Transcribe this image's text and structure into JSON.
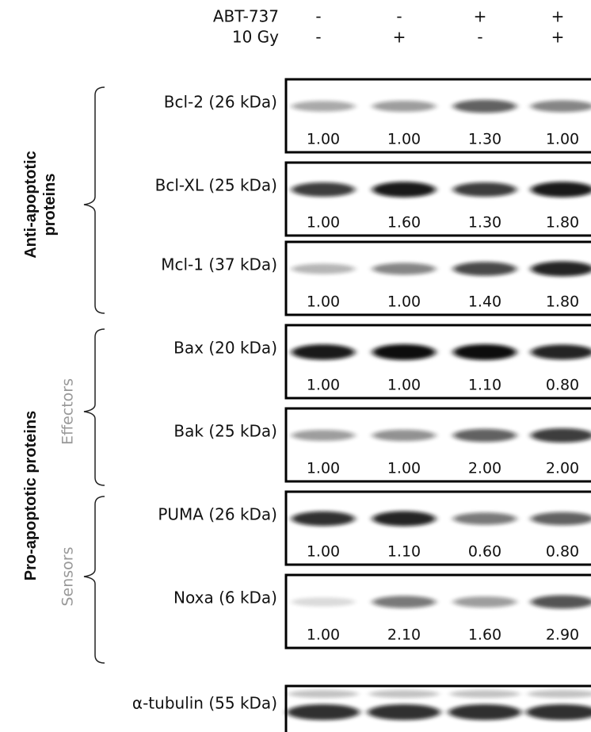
{
  "header": {
    "rows": [
      {
        "label": "ABT-737",
        "lanes": [
          "-",
          "-",
          "+",
          "+"
        ]
      },
      {
        "label": "10 Gy",
        "lanes": [
          "-",
          "+",
          "-",
          "+"
        ]
      }
    ]
  },
  "groups": [
    {
      "lines": [
        "Anti-apoptotic",
        "proteins"
      ]
    },
    {
      "lines": [
        "Pro-apoptotic proteins"
      ]
    }
  ],
  "subgroups": [
    {
      "label": "Effectors"
    },
    {
      "label": "Sensors"
    }
  ],
  "blots": [
    {
      "label": "Bcl-2 (26 kDa)",
      "values": [
        "1.00",
        "1.00",
        "1.30",
        "1.00"
      ]
    },
    {
      "label": "Bcl-XL (25 kDa)",
      "values": [
        "1.00",
        "1.60",
        "1.30",
        "1.80"
      ]
    },
    {
      "label": "Mcl-1 (37 kDa)",
      "values": [
        "1.00",
        "1.00",
        "1.40",
        "1.80"
      ]
    },
    {
      "label": "Bax (20 kDa)",
      "values": [
        "1.00",
        "1.00",
        "1.10",
        "0.80"
      ]
    },
    {
      "label": "Bak (25 kDa)",
      "values": [
        "1.00",
        "1.00",
        "2.00",
        "2.00"
      ]
    },
    {
      "label": "PUMA (26 kDa)",
      "values": [
        "1.00",
        "1.10",
        "0.60",
        "0.80"
      ]
    },
    {
      "label": "Noxa (6 kDa)",
      "values": [
        "1.00",
        "2.10",
        "1.60",
        "2.90"
      ]
    }
  ],
  "loading_control": {
    "label": "α-tubulin (55 kDa)"
  }
}
